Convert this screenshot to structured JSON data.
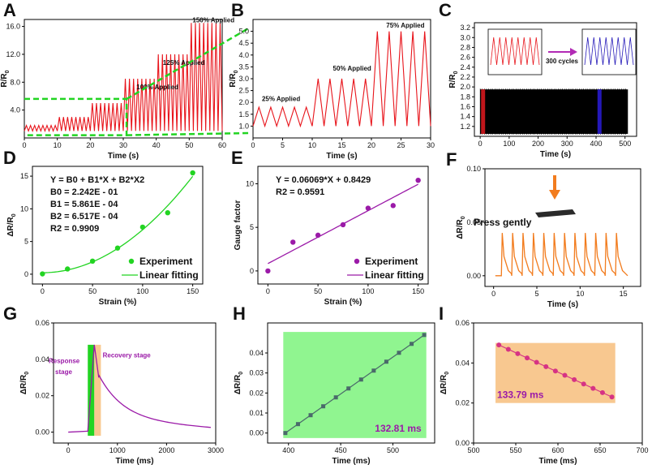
{
  "panels": [
    {
      "id": "A",
      "label": "A",
      "type": "line",
      "xlabel": "Time (s)",
      "ylabel": "R/R0",
      "xlim": [
        0,
        60
      ],
      "ylim": [
        0,
        17
      ],
      "xticks": [
        0,
        10,
        20,
        30,
        40,
        50,
        60
      ],
      "yticks": [
        4.0,
        8.0,
        12.0,
        16.0
      ],
      "ytick_labels": [
        "4.0",
        "8.0",
        "12.0",
        "16.0"
      ],
      "annotations": [
        {
          "text": "100% Applied",
          "x": 34,
          "y": 7.0
        },
        {
          "text": "125% Applied",
          "x": 42,
          "y": 10.5
        },
        {
          "text": "150% Applied",
          "x": 51,
          "y": 16.6
        }
      ],
      "stages": [
        {
          "t0": 0,
          "t1": 10,
          "period": 1.25,
          "min": 1.0,
          "max": 1.8
        },
        {
          "t0": 10,
          "t1": 20,
          "period": 1.25,
          "min": 1.0,
          "max": 3.0
        },
        {
          "t0": 20,
          "t1": 30,
          "period": 1.25,
          "min": 1.0,
          "max": 5.0
        },
        {
          "t0": 30,
          "t1": 40,
          "period": 1.25,
          "min": 1.0,
          "max": 8.5
        },
        {
          "t0": 40,
          "t1": 50,
          "period": 1.25,
          "min": 1.0,
          "max": 12.0
        },
        {
          "t0": 50,
          "t1": 60,
          "period": 1.25,
          "min": 1.0,
          "max": 16.5
        }
      ]
    },
    {
      "id": "B",
      "label": "B",
      "type": "line",
      "xlabel": "Time (s)",
      "ylabel": "R/R0",
      "xlim": [
        0,
        30
      ],
      "ylim": [
        0.5,
        5.5
      ],
      "xticks": [
        0,
        5,
        10,
        15,
        20,
        25,
        30
      ],
      "yticks": [
        1.0,
        1.5,
        2.0,
        2.5,
        3.0,
        3.5,
        4.0,
        4.5,
        5.0
      ],
      "ytick_labels": [
        "1.0",
        "1.5",
        "2.0",
        "2.5",
        "3.0",
        "3.5",
        "4.0",
        "4.5",
        "5.0"
      ],
      "annotations": [
        {
          "text": "25% Applied",
          "x": 1.5,
          "y": 2.05
        },
        {
          "text": "50% Applied",
          "x": 13.5,
          "y": 3.35
        },
        {
          "text": "75% Applied",
          "x": 22.5,
          "y": 5.15
        }
      ],
      "stages": [
        {
          "t0": 0,
          "t1": 10,
          "period": 2.0,
          "min": 1.0,
          "max": 1.8
        },
        {
          "t0": 10,
          "t1": 20,
          "period": 2.0,
          "min": 1.0,
          "max": 3.0
        },
        {
          "t0": 20,
          "t1": 30,
          "period": 2.0,
          "min": 1.0,
          "max": 5.0
        }
      ]
    },
    {
      "id": "C",
      "label": "C",
      "type": "line",
      "xlabel": "Time (s)",
      "ylabel": "R/R0",
      "xlim": [
        -20,
        540
      ],
      "ylim": [
        1.0,
        3.3
      ],
      "xticks": [
        0,
        100,
        200,
        300,
        400,
        500
      ],
      "yticks": [
        1.2,
        1.4,
        1.6,
        1.8,
        2.0,
        2.2,
        2.4,
        2.6,
        2.8,
        3.0,
        3.2
      ],
      "ytick_labels": [
        "1.2",
        "1.4",
        "1.6",
        "1.8",
        "2.0",
        "2.2",
        "2.4",
        "2.6",
        "2.8",
        "3.0",
        "3.2"
      ],
      "band": {
        "t0": 0,
        "t1": 510,
        "min": 1.05,
        "max": 1.95
      },
      "highlights": [
        {
          "t": 10,
          "color": "#c0161b"
        },
        {
          "t": 412,
          "color": "#2418b8"
        }
      ],
      "inset_note": "300 cycles"
    },
    {
      "id": "D",
      "label": "D",
      "type": "scatter",
      "xlabel": "Strain (%)",
      "ylabel": "ΔR/R0",
      "xlim": [
        -10,
        160
      ],
      "ylim": [
        -1.5,
        16.5
      ],
      "xticks": [
        0,
        50,
        100,
        150
      ],
      "yticks": [
        0,
        5,
        10,
        15
      ],
      "points": {
        "x": [
          0,
          25,
          50,
          75,
          100,
          125,
          150
        ],
        "y": [
          0.05,
          0.8,
          2.0,
          4.0,
          7.2,
          9.4,
          15.5
        ]
      },
      "fit": {
        "b0": 0.2242,
        "b1": 0.0005861,
        "b2": 0.0006517
      },
      "equation": [
        "Y = B0 + B1*X + B2*X2",
        "B0 = 2.242E - 01",
        "B1 = 5.861E - 04",
        "B2 = 6.517E - 04",
        "R2 = 0.9909"
      ],
      "legend": [
        "Experiment",
        "Linear fitting"
      ]
    },
    {
      "id": "E",
      "label": "E",
      "type": "scatter",
      "xlabel": "Strain (%)",
      "ylabel": "Gauge factor",
      "xlim": [
        -10,
        160
      ],
      "ylim": [
        -1.5,
        12
      ],
      "xticks": [
        0,
        50,
        100,
        150
      ],
      "yticks": [
        0,
        5,
        10
      ],
      "points": {
        "x": [
          0,
          25,
          50,
          75,
          100,
          125,
          150
        ],
        "y": [
          0,
          3.3,
          4.1,
          5.3,
          7.2,
          7.5,
          10.4
        ]
      },
      "fit": {
        "slope": 0.06069,
        "intercept": 0.8429
      },
      "equation": [
        "Y = 0.06069*X + 0.8429",
        "R2 = 0.9591"
      ],
      "legend": [
        "Experiment",
        "Linear fitting"
      ]
    },
    {
      "id": "F",
      "label": "F",
      "type": "line",
      "xlabel": "Time (s)",
      "ylabel": "ΔR/R0",
      "xlim": [
        -1,
        17
      ],
      "ylim": [
        -0.01,
        0.1
      ],
      "xticks": [
        0,
        5,
        10,
        15
      ],
      "yticks": [
        0.0,
        0.05,
        0.1
      ],
      "ytick_labels": [
        "0.00",
        "0.05",
        "0.10"
      ],
      "peaks": [
        1.0,
        2.2,
        3.4,
        4.6,
        5.8,
        7.0,
        8.2,
        9.4,
        10.6,
        11.8,
        13.0,
        14.2
      ],
      "peak_height": 0.04,
      "note": "Press gently"
    },
    {
      "id": "G",
      "label": "G",
      "type": "line",
      "xlabel": "Time (ms)",
      "ylabel": "ΔR/R0",
      "xlim": [
        -300,
        3000
      ],
      "ylim": [
        -0.006,
        0.06
      ],
      "xticks": [
        0,
        1000,
        2000,
        3000
      ],
      "yticks": [
        0.0,
        0.02,
        0.04,
        0.06
      ],
      "ytick_labels": [
        "0.00",
        "0.02",
        "0.04",
        "0.06"
      ],
      "response_window": [
        397,
        530
      ],
      "recovery_window": [
        530,
        664
      ],
      "peak": {
        "x": 530,
        "y": 0.048
      },
      "labels": {
        "response": "Response stage",
        "recovery": "Recovery stage"
      }
    },
    {
      "id": "H",
      "label": "H",
      "type": "line",
      "xlabel": "Time (ms)",
      "ylabel": "ΔR/R0",
      "xlim": [
        380,
        540
      ],
      "ylim": [
        -0.005,
        0.055
      ],
      "xticks": [
        400,
        450,
        500
      ],
      "yticks": [
        0.0,
        0.01,
        0.02,
        0.03,
        0.04
      ],
      "ytick_labels": [
        "0.00",
        "0.01",
        "0.02",
        "0.03",
        "0.04"
      ],
      "line": {
        "x0": 397,
        "y0": 0.0,
        "x1": 530,
        "y1": 0.049,
        "n": 12
      },
      "box": {
        "x0": 395,
        "x1": 532,
        "y0": -0.0025,
        "y1": 0.0505
      },
      "duration": "132.81 ms"
    },
    {
      "id": "I",
      "label": "I",
      "type": "line",
      "xlabel": "Time (ms)",
      "ylabel": "ΔR/R0",
      "xlim": [
        500,
        700
      ],
      "ylim": [
        0,
        0.06
      ],
      "xticks": [
        500,
        550,
        600,
        650,
        700
      ],
      "yticks": [
        0.0,
        0.02,
        0.04,
        0.06
      ],
      "ytick_labels": [
        "0.00",
        "0.02",
        "0.04",
        "0.06"
      ],
      "line": {
        "x0": 530,
        "y0": 0.049,
        "x1": 664,
        "y1": 0.023,
        "n": 13
      },
      "box": {
        "x0": 526,
        "x1": 668,
        "y0": 0.02,
        "y1": 0.05
      },
      "duration": "133.79 ms"
    }
  ],
  "colors": {
    "red": "#e8141b",
    "green": "#22d422",
    "black": "#000000",
    "purple": "#9b1aa8",
    "orange": "#f27c1e",
    "pink": "#d63384",
    "lightgreen": "#90f590",
    "peach": "#f8c890"
  }
}
